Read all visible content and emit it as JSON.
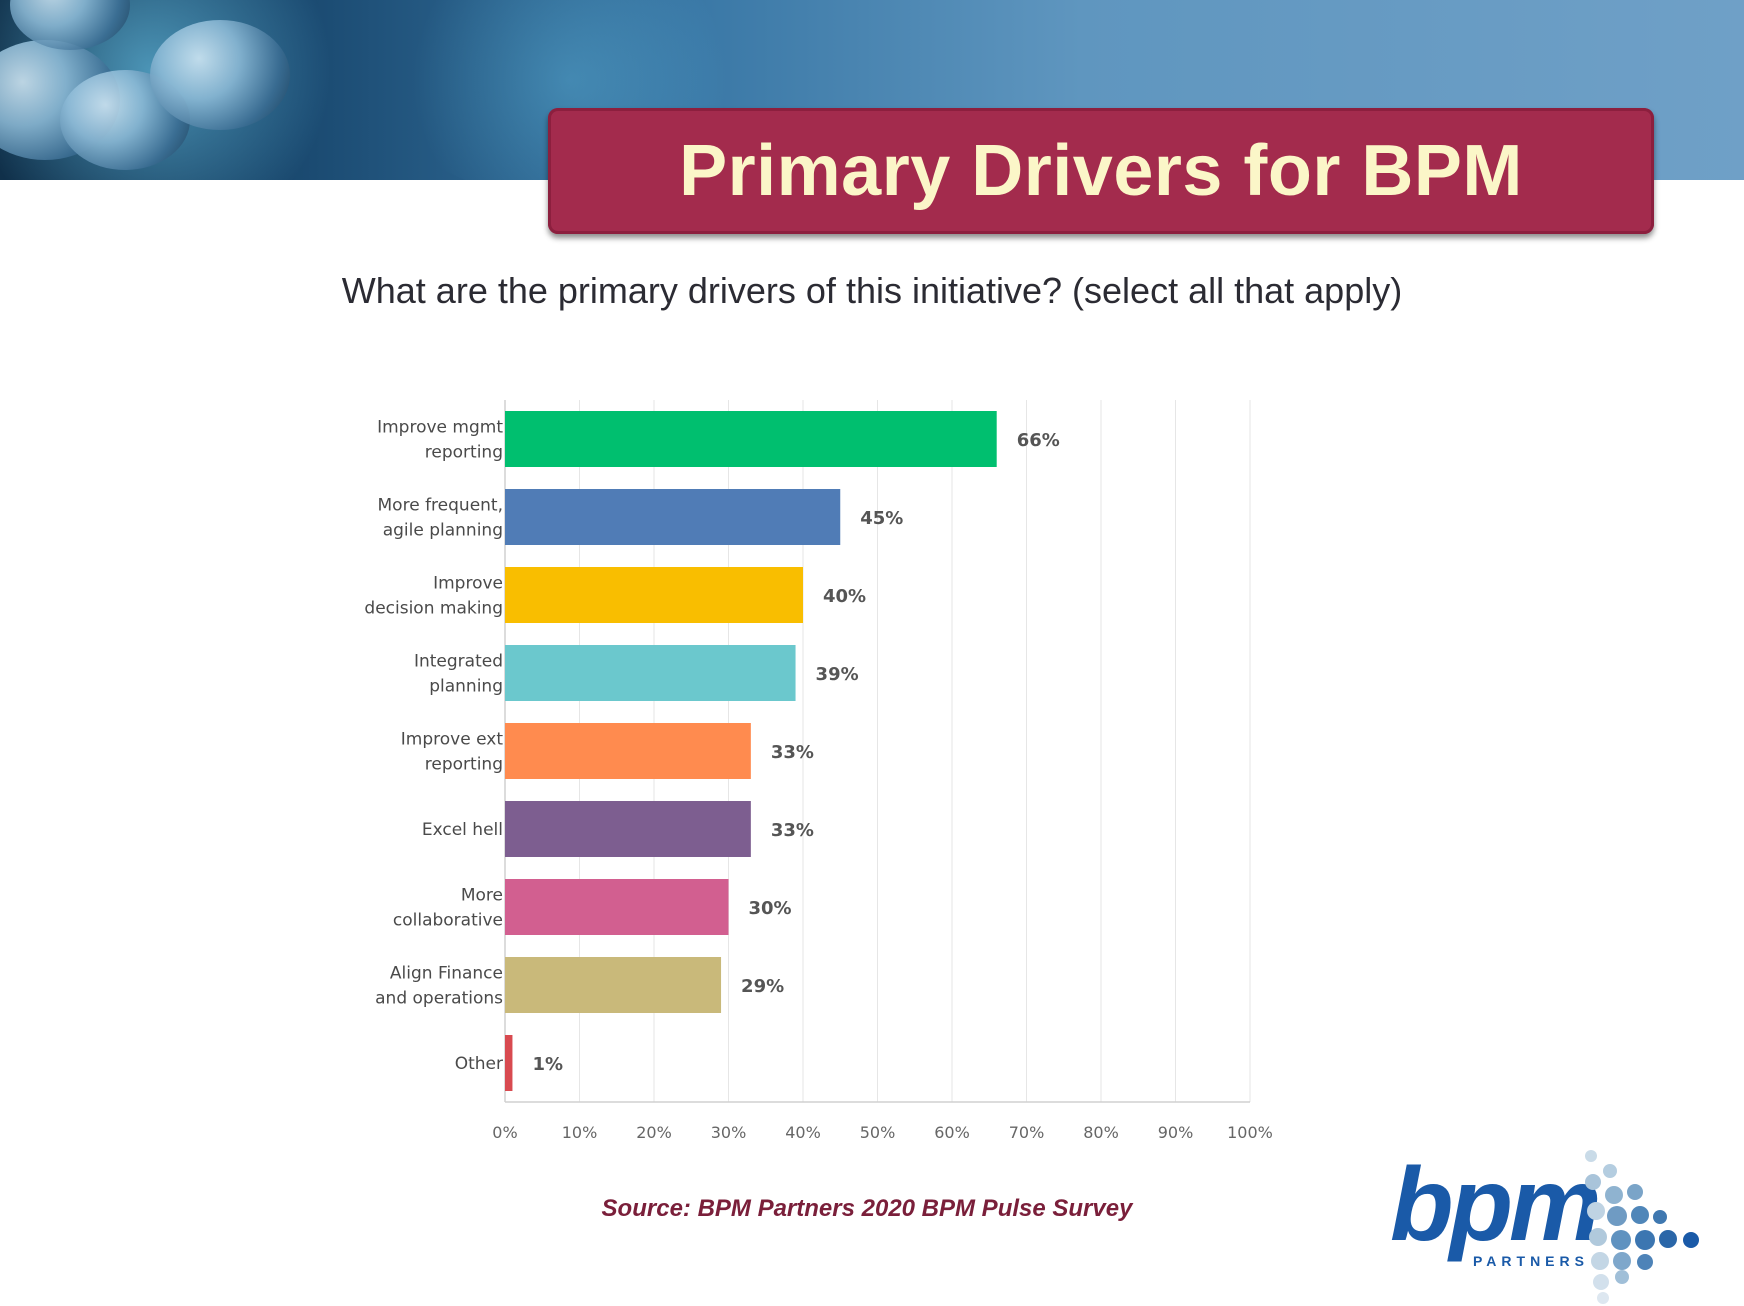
{
  "slide": {
    "title": "Primary Drivers for BPM",
    "subtitle": "What are the primary drivers of this initiative? (select all that apply)",
    "source": "Source: BPM Partners 2020 BPM Pulse Survey"
  },
  "logo": {
    "word": "bpm",
    "subtext": "PARTNERS"
  },
  "colors": {
    "title_bg": "#a32b4d",
    "title_text": "#fbf6c8",
    "source_text": "#7a1f3a",
    "logo_blue": "#1a5aa8"
  },
  "chart_data": {
    "type": "bar",
    "orientation": "horizontal",
    "categories": [
      [
        "Improve mgmt",
        "reporting"
      ],
      [
        "More frequent,",
        "agile planning"
      ],
      [
        "Improve",
        "decision making"
      ],
      [
        "Integrated",
        "planning"
      ],
      [
        "Improve ext",
        "reporting"
      ],
      [
        "Excel hell"
      ],
      [
        "More",
        "collaborative"
      ],
      [
        "Align Finance",
        "and operations"
      ],
      [
        "Other"
      ]
    ],
    "values": [
      66,
      45,
      40,
      39,
      33,
      33,
      30,
      29,
      1
    ],
    "value_labels": [
      "66%",
      "45%",
      "40%",
      "39%",
      "33%",
      "33%",
      "30%",
      "29%",
      "1%"
    ],
    "bar_colors": [
      "#00bf6f",
      "#507cb6",
      "#f9be00",
      "#6bc8cd",
      "#ff8b4f",
      "#7d5e90",
      "#d25f90",
      "#c9b97a",
      "#d84a50"
    ],
    "xlim": [
      0,
      100
    ],
    "x_ticks": [
      "0%",
      "10%",
      "20%",
      "30%",
      "40%",
      "50%",
      "60%",
      "70%",
      "80%",
      "90%",
      "100%"
    ],
    "grid": true
  }
}
